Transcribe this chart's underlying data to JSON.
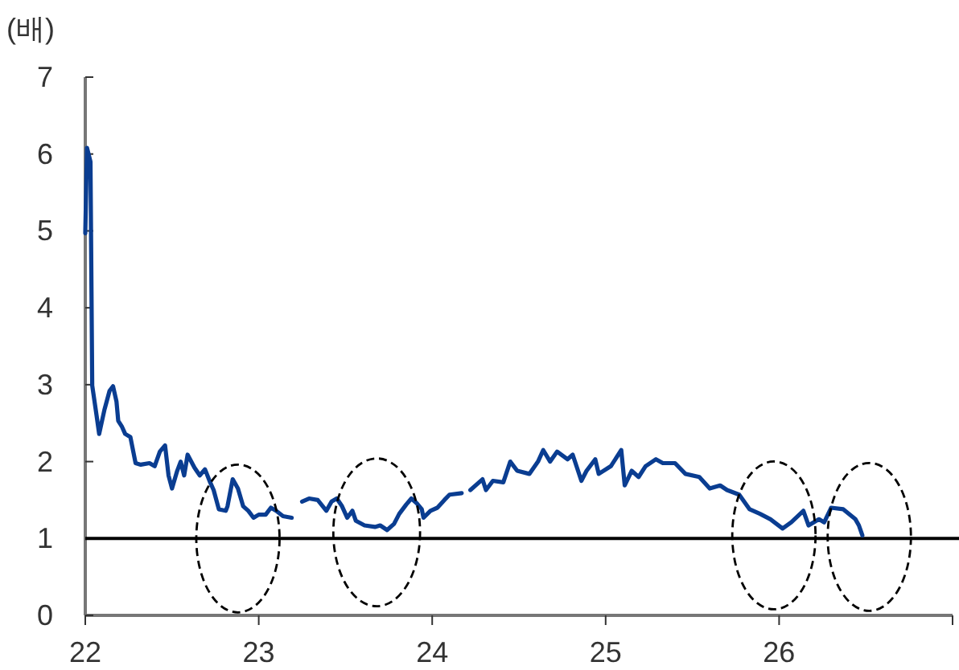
{
  "chart_data": {
    "type": "line",
    "ylabel": "(배)",
    "xlim": [
      22,
      27
    ],
    "xticks": [
      22,
      23,
      24,
      25,
      26,
      {
        "value": 27,
        "label": null
      }
    ],
    "ylim": [
      0,
      7
    ],
    "yticks": [
      0,
      1,
      2,
      3,
      4,
      5,
      6,
      7
    ],
    "grid": false,
    "ref_lines": [
      {
        "axis": "y",
        "value": 1,
        "color": "#000000",
        "line_style": "solid"
      }
    ],
    "series": [
      {
        "color": "#0a3d91",
        "x": [
          22.0,
          22.01,
          22.03,
          22.04,
          22.065,
          22.08,
          22.11,
          22.14,
          22.16,
          22.18,
          22.19,
          22.21,
          22.23,
          22.26,
          22.29,
          22.32,
          22.37,
          22.4,
          22.43,
          22.46,
          22.48,
          22.5,
          22.53,
          22.55,
          22.57,
          22.59,
          22.63,
          22.66,
          22.69,
          22.72,
          22.74,
          22.77,
          22.81,
          22.82,
          22.85,
          22.88,
          22.91,
          22.94,
          22.97,
          23.0,
          23.04,
          23.07,
          23.1,
          23.14,
          23.19,
          23.22,
          23.25,
          23.29,
          23.34,
          23.39,
          23.42,
          23.45,
          23.48,
          23.51,
          23.54,
          23.56,
          23.61,
          23.67,
          23.7,
          23.74,
          23.78,
          23.81,
          23.85,
          23.88,
          23.91,
          23.94,
          23.95,
          23.99,
          24.03,
          24.07,
          24.1,
          24.17,
          24.195,
          24.22,
          24.29,
          24.31,
          24.35,
          24.41,
          24.45,
          24.49,
          24.56,
          24.61,
          24.64,
          24.68,
          24.72,
          24.78,
          24.81,
          24.86,
          24.89,
          24.94,
          24.96,
          25.03,
          25.09,
          25.11,
          25.15,
          25.19,
          25.23,
          25.29,
          25.33,
          25.4,
          25.46,
          25.54,
          25.6,
          25.66,
          25.7,
          25.77,
          25.83,
          25.89,
          25.95,
          26.02,
          26.07,
          26.14,
          26.17,
          26.23,
          26.26,
          26.3,
          26.37,
          26.44,
          26.46,
          26.48
        ],
        "values": [
          4.97,
          6.08,
          5.9,
          2.99,
          2.6,
          2.36,
          2.67,
          2.92,
          2.98,
          2.78,
          2.53,
          2.46,
          2.36,
          2.32,
          1.98,
          1.96,
          1.98,
          1.94,
          2.13,
          2.21,
          1.82,
          1.65,
          1.88,
          2.0,
          1.82,
          2.09,
          1.92,
          1.82,
          1.9,
          1.73,
          1.63,
          1.38,
          1.36,
          1.42,
          1.77,
          1.65,
          1.42,
          1.36,
          1.27,
          1.31,
          1.31,
          1.4,
          1.36,
          1.29,
          1.27,
          null,
          1.48,
          1.52,
          1.5,
          1.36,
          1.48,
          1.52,
          1.42,
          1.27,
          1.36,
          1.23,
          1.17,
          1.15,
          1.17,
          1.11,
          1.19,
          1.32,
          1.44,
          1.52,
          1.46,
          1.38,
          1.27,
          1.36,
          1.4,
          1.5,
          1.57,
          1.59,
          null,
          1.63,
          1.77,
          1.63,
          1.75,
          1.73,
          2.0,
          1.88,
          1.84,
          2.0,
          2.15,
          2.0,
          2.13,
          2.03,
          2.09,
          1.75,
          1.88,
          2.03,
          1.84,
          1.94,
          2.15,
          1.69,
          1.88,
          1.8,
          1.94,
          2.03,
          1.98,
          1.98,
          1.84,
          1.8,
          1.65,
          1.69,
          1.63,
          1.57,
          1.38,
          1.32,
          1.25,
          1.13,
          1.21,
          1.36,
          1.17,
          1.25,
          1.21,
          1.4,
          1.38,
          1.25,
          1.17,
          1.04
        ]
      }
    ]
  }
}
